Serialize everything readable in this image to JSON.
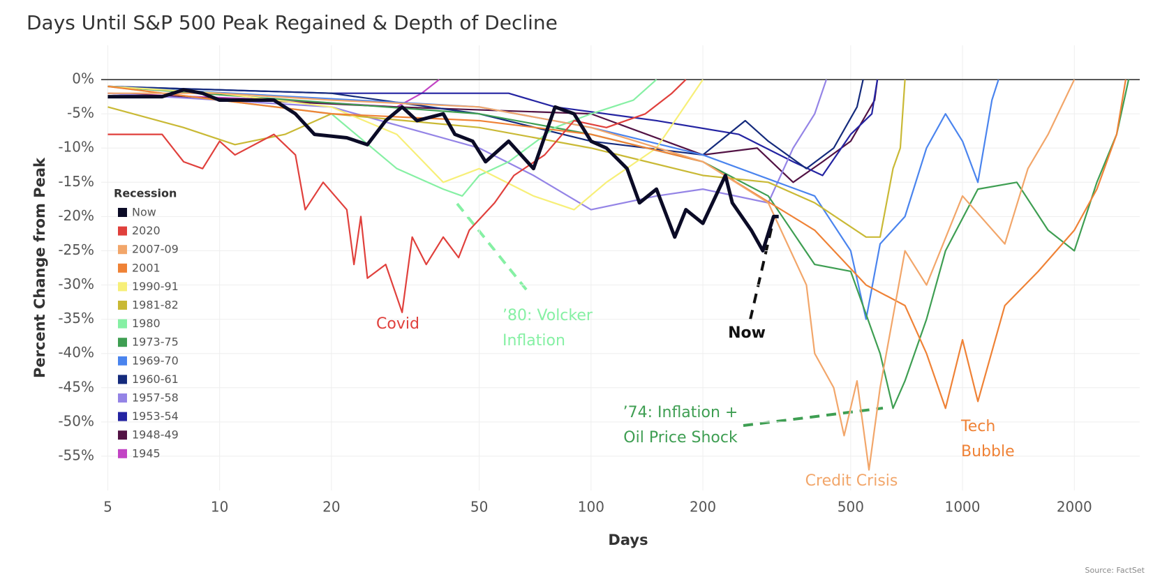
{
  "chart_data": {
    "type": "line",
    "title": "Days Until S&P 500 Peak Regained & Depth of Decline",
    "x_label": "Days",
    "y_label": "Percent Change from Peak",
    "source": "Source: FactSet",
    "xscale": "log",
    "xlim": [
      4.8,
      3000
    ],
    "ylim": [
      -60,
      5
    ],
    "xticks": [
      5,
      10,
      20,
      50,
      100,
      200,
      500,
      1000,
      2000
    ],
    "yticks": [
      {
        "value": 0,
        "label": "0%"
      },
      {
        "value": -5,
        "label": "-5%"
      },
      {
        "value": -10,
        "label": "-10%"
      },
      {
        "value": -15,
        "label": "-15%"
      },
      {
        "value": -20,
        "label": "-20%"
      },
      {
        "value": -25,
        "label": "-25%"
      },
      {
        "value": -30,
        "label": "-30%"
      },
      {
        "value": -35,
        "label": "-35%"
      },
      {
        "value": -40,
        "label": "-40%"
      },
      {
        "value": -45,
        "label": "-45%"
      },
      {
        "value": -50,
        "label": "-50%"
      },
      {
        "value": -55,
        "label": "-55%"
      }
    ],
    "grid": true,
    "legend_title": "Recession",
    "legend_position": "left",
    "series": [
      {
        "name": "Now",
        "color": "#0b0b26",
        "x": [
          5,
          7,
          8,
          9,
          10,
          14,
          16,
          18,
          22,
          25,
          28,
          31,
          34,
          40,
          43,
          48,
          52,
          60,
          70,
          80,
          90,
          100,
          110,
          125,
          135,
          150,
          168,
          180,
          200,
          230,
          240,
          270,
          290,
          310,
          320
        ],
        "values": [
          -2.5,
          -2.5,
          -1.5,
          -2,
          -3,
          -3,
          -5,
          -8,
          -8.5,
          -9.5,
          -6,
          -4,
          -6,
          -5,
          -8,
          -9,
          -12,
          -9,
          -13,
          -4,
          -5,
          -9,
          -10,
          -13,
          -18,
          -16,
          -23,
          -19,
          -21,
          -14,
          -18,
          -22,
          -25,
          -20,
          -20
        ]
      },
      {
        "name": "2020",
        "color": "#e0403c",
        "x": [
          5,
          7,
          8,
          9,
          10,
          11,
          14,
          16,
          17,
          19,
          22,
          23,
          24,
          25,
          28,
          31,
          33,
          36,
          40,
          44,
          47,
          55,
          62,
          75,
          90,
          110,
          140,
          165,
          180
        ],
        "values": [
          -8,
          -8,
          -12,
          -13,
          -9,
          -11,
          -8,
          -11,
          -19,
          -15,
          -19,
          -27,
          -20,
          -29,
          -27,
          -34,
          -23,
          -27,
          -23,
          -26,
          -22,
          -18,
          -14,
          -11,
          -6,
          -7,
          -5,
          -2,
          0
        ]
      },
      {
        "name": "2007-09",
        "color": "#f2a66a",
        "x": [
          5,
          10,
          20,
          50,
          100,
          200,
          300,
          380,
          400,
          450,
          480,
          520,
          560,
          600,
          700,
          800,
          1000,
          1300,
          1500,
          1700,
          2000
        ],
        "values": [
          -2,
          -2,
          -3,
          -4,
          -7,
          -12,
          -18,
          -30,
          -40,
          -45,
          -52,
          -44,
          -57,
          -45,
          -25,
          -30,
          -17,
          -24,
          -13,
          -8,
          0
        ]
      },
      {
        "name": "2001",
        "color": "#ef8236",
        "x": [
          5,
          20,
          50,
          100,
          200,
          400,
          550,
          700,
          800,
          900,
          1000,
          1100,
          1300,
          1600,
          2000,
          2300,
          2600,
          2750
        ],
        "values": [
          -1,
          -5,
          -6,
          -8,
          -12,
          -22,
          -30,
          -33,
          -40,
          -48,
          -38,
          -47,
          -33,
          -28,
          -22,
          -16,
          -8,
          0
        ]
      },
      {
        "name": "1990-91",
        "color": "#f7ef78",
        "x": [
          5,
          10,
          20,
          30,
          40,
          50,
          70,
          90,
          110,
          150,
          200
        ],
        "values": [
          -1,
          -2,
          -4,
          -8,
          -15,
          -13,
          -17,
          -19,
          -15,
          -10,
          0
        ]
      },
      {
        "name": "1981-82",
        "color": "#c9b935",
        "x": [
          5,
          8,
          11,
          15,
          20,
          50,
          100,
          200,
          300,
          400,
          550,
          600,
          650,
          680,
          700
        ],
        "values": [
          -4,
          -7,
          -9.5,
          -8,
          -5,
          -7,
          -10,
          -14,
          -15,
          -18,
          -23,
          -23,
          -13,
          -10,
          0
        ]
      },
      {
        "name": "1980",
        "color": "#86f0a4",
        "x": [
          5,
          20,
          30,
          40,
          45,
          50,
          60,
          80,
          100,
          130,
          150
        ],
        "values": [
          -1,
          -5,
          -13,
          -16,
          -17,
          -14,
          -12,
          -7,
          -5,
          -3,
          0
        ]
      },
      {
        "name": "1973-75",
        "color": "#3e9e52",
        "x": [
          5,
          50,
          100,
          200,
          300,
          400,
          500,
          600,
          650,
          700,
          800,
          900,
          1100,
          1400,
          1700,
          2000,
          2300,
          2600,
          2800
        ],
        "values": [
          -1,
          -5,
          -8,
          -12,
          -17,
          -27,
          -28,
          -40,
          -48,
          -44,
          -35,
          -25,
          -16,
          -15,
          -22,
          -25,
          -15,
          -8,
          0
        ]
      },
      {
        "name": "1969-70",
        "color": "#4a84ee",
        "x": [
          5,
          50,
          100,
          200,
          400,
          500,
          550,
          600,
          700,
          800,
          900,
          1000,
          1100,
          1200,
          1250
        ],
        "values": [
          -1,
          -4,
          -7,
          -11,
          -17,
          -25,
          -35,
          -24,
          -20,
          -10,
          -5,
          -9,
          -15,
          -3,
          0
        ]
      },
      {
        "name": "1960-61",
        "color": "#142a7c",
        "x": [
          5,
          20,
          50,
          100,
          200,
          260,
          300,
          380,
          450,
          520,
          540
        ],
        "values": [
          -1,
          -2,
          -5,
          -9,
          -11,
          -6,
          -9,
          -13,
          -10,
          -4,
          0
        ]
      },
      {
        "name": "1957-58",
        "color": "#9484e6",
        "x": [
          5,
          20,
          50,
          70,
          100,
          150,
          200,
          300,
          350,
          400,
          430
        ],
        "values": [
          -2,
          -4,
          -10,
          -14,
          -19,
          -17,
          -16,
          -18,
          -10,
          -5,
          0
        ]
      },
      {
        "name": "1953-54",
        "color": "#2424a2",
        "x": [
          5,
          20,
          40,
          60,
          80,
          150,
          250,
          350,
          420,
          500,
          570,
          590
        ],
        "values": [
          -1,
          -2,
          -2,
          -2,
          -4,
          -6,
          -8,
          -12,
          -14,
          -8,
          -5,
          0
        ]
      },
      {
        "name": "1948-49",
        "color": "#521244",
        "x": [
          5,
          30,
          100,
          200,
          280,
          350,
          420,
          500,
          580,
          590
        ],
        "values": [
          -2,
          -4,
          -5,
          -11,
          -10,
          -15,
          -12,
          -9,
          -3,
          0
        ]
      },
      {
        "name": "1945",
        "color": "#c244c4",
        "x": [
          5,
          15,
          30,
          35,
          39
        ],
        "values": [
          -2,
          -3,
          -4,
          -2,
          0
        ]
      }
    ],
    "annotations": [
      [
        "Covid"
      ],
      [
        "’80: Volcker",
        "Inflation"
      ],
      [
        "Now"
      ],
      [
        "’74: Inflation +",
        "Oil Price Shock"
      ],
      [
        "Credit Crisis"
      ],
      [
        "Tech",
        "Bubble"
      ]
    ]
  }
}
